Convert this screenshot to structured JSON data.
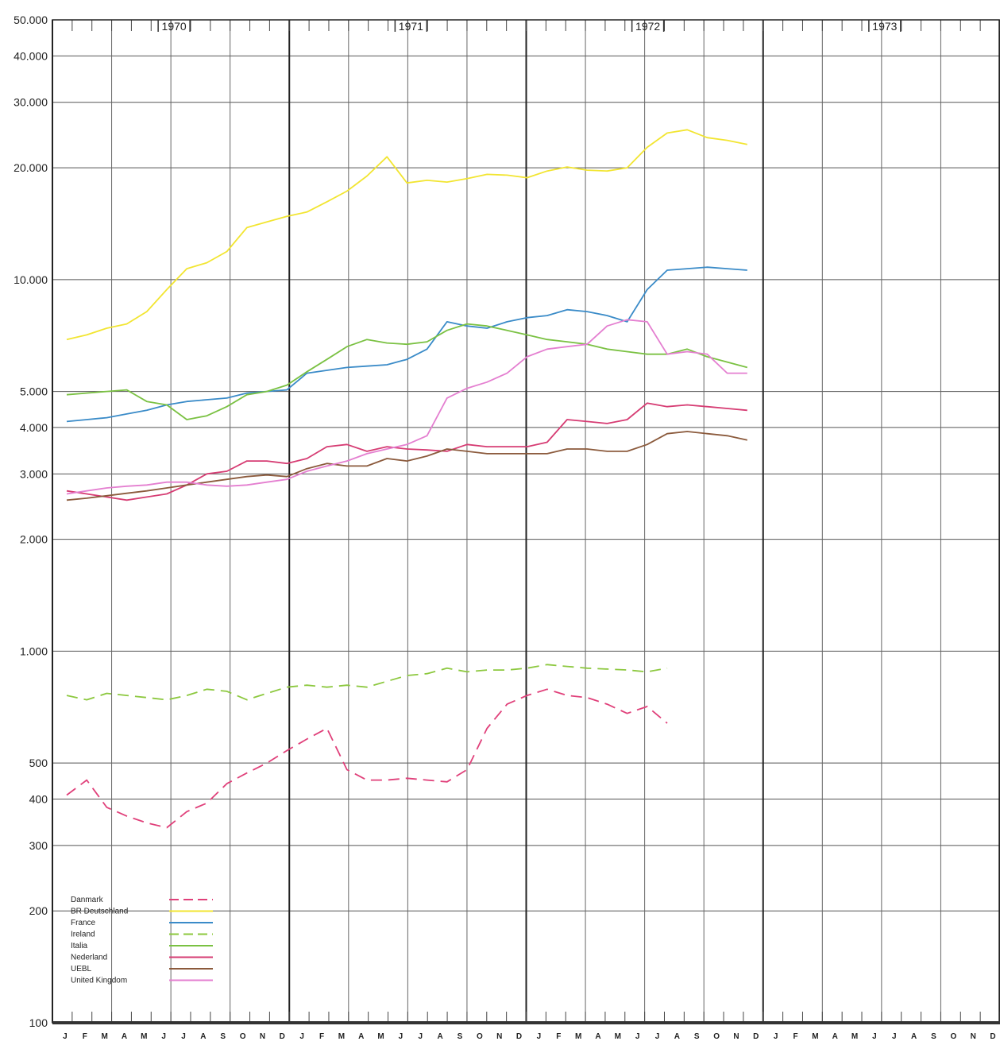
{
  "chart_data": {
    "type": "line",
    "y_scale": "log",
    "ylim": [
      100,
      50000
    ],
    "y_ticks": [
      {
        "value": 100,
        "label": "100"
      },
      {
        "value": 200,
        "label": "200"
      },
      {
        "value": 300,
        "label": "300"
      },
      {
        "value": 400,
        "label": "400"
      },
      {
        "value": 500,
        "label": "500"
      },
      {
        "value": 1000,
        "label": "1.000"
      },
      {
        "value": 2000,
        "label": "2.000"
      },
      {
        "value": 3000,
        "label": "3.000"
      },
      {
        "value": 4000,
        "label": "4.000"
      },
      {
        "value": 5000,
        "label": "5.000"
      },
      {
        "value": 10000,
        "label": "10.000"
      },
      {
        "value": 20000,
        "label": "20.000"
      },
      {
        "value": 30000,
        "label": "30.000"
      },
      {
        "value": 40000,
        "label": "40.000"
      },
      {
        "value": 50000,
        "label": "50.000"
      }
    ],
    "years": [
      "1970",
      "1971",
      "1972",
      "1973"
    ],
    "month_labels": [
      "J",
      "F",
      "M",
      "A",
      "M",
      "J",
      "J",
      "A",
      "S",
      "O",
      "N",
      "D"
    ],
    "grid": true,
    "legend_position": "bottom-left",
    "series": [
      {
        "name": "Danmark",
        "color": "#e0407a",
        "dash": "dashed",
        "values": [
          410,
          450,
          380,
          360,
          345,
          335,
          370,
          390,
          440,
          470,
          500,
          540,
          580,
          620,
          480,
          450,
          450,
          455,
          450,
          445,
          480,
          620,
          720,
          760,
          790,
          760,
          750,
          720,
          680,
          710,
          640
        ]
      },
      {
        "name": "BR Deutschland",
        "color": "#f2e531",
        "dash": "solid",
        "values": [
          6900,
          7100,
          7400,
          7600,
          8200,
          9400,
          10700,
          11100,
          11900,
          13800,
          14300,
          14800,
          15200,
          16200,
          17300,
          19000,
          21400,
          18200,
          18500,
          18300,
          18700,
          19200,
          19100,
          18800,
          19600,
          20100,
          19700,
          19600,
          20000,
          22700,
          24800,
          25300,
          24100,
          23700,
          23100
        ]
      },
      {
        "name": "France",
        "color": "#3a8bc8",
        "dash": "solid",
        "values": [
          4150,
          4200,
          4250,
          4350,
          4450,
          4600,
          4700,
          4750,
          4800,
          4950,
          5000,
          5050,
          5600,
          5700,
          5800,
          5850,
          5900,
          6100,
          6500,
          7700,
          7500,
          7400,
          7700,
          7900,
          8000,
          8300,
          8200,
          8000,
          7700,
          9400,
          10600,
          10700,
          10800,
          10700,
          10600
        ]
      },
      {
        "name": "Ireland",
        "color": "#8cc83e",
        "dash": "dashed",
        "values": [
          760,
          740,
          770,
          760,
          750,
          740,
          760,
          790,
          780,
          740,
          770,
          800,
          810,
          800,
          810,
          800,
          830,
          860,
          870,
          900,
          880,
          890,
          890,
          900,
          920,
          910,
          900,
          895,
          890,
          880,
          900
        ]
      },
      {
        "name": "Italia",
        "color": "#7ac142",
        "dash": "solid",
        "values": [
          4900,
          4950,
          5000,
          5050,
          4700,
          4600,
          4200,
          4300,
          4550,
          4900,
          5000,
          5200,
          5650,
          6100,
          6600,
          6900,
          6750,
          6700,
          6800,
          7300,
          7600,
          7500,
          7300,
          7100,
          6900,
          6800,
          6700,
          6500,
          6400,
          6300,
          6300,
          6500,
          6200,
          6000,
          5800
        ]
      },
      {
        "name": "Nederland",
        "color": "#d63c73",
        "dash": "solid",
        "values": [
          2700,
          2650,
          2600,
          2550,
          2600,
          2650,
          2800,
          3000,
          3050,
          3250,
          3250,
          3200,
          3300,
          3550,
          3600,
          3450,
          3550,
          3500,
          3480,
          3450,
          3600,
          3550,
          3550,
          3550,
          3650,
          4200,
          4150,
          4100,
          4200,
          4650,
          4550,
          4600,
          4550,
          4500,
          4450
        ]
      },
      {
        "name": "UEBL",
        "color": "#8b5a3c",
        "dash": "solid",
        "values": [
          2550,
          2580,
          2620,
          2660,
          2700,
          2750,
          2800,
          2850,
          2900,
          2950,
          2980,
          2950,
          3100,
          3200,
          3150,
          3150,
          3300,
          3250,
          3350,
          3500,
          3450,
          3400,
          3400,
          3400,
          3400,
          3500,
          3500,
          3450,
          3450,
          3600,
          3850,
          3900,
          3850,
          3800,
          3700
        ]
      },
      {
        "name": "United Kingdom",
        "color": "#e47fd0",
        "dash": "solid",
        "values": [
          2650,
          2700,
          2750,
          2780,
          2800,
          2850,
          2850,
          2800,
          2780,
          2800,
          2850,
          2900,
          3050,
          3150,
          3250,
          3400,
          3500,
          3600,
          3800,
          4800,
          5100,
          5300,
          5600,
          6200,
          6500,
          6600,
          6700,
          7500,
          7800,
          7700,
          6300,
          6400,
          6300,
          5600,
          5600
        ]
      }
    ],
    "series_lengths_note": ""
  }
}
